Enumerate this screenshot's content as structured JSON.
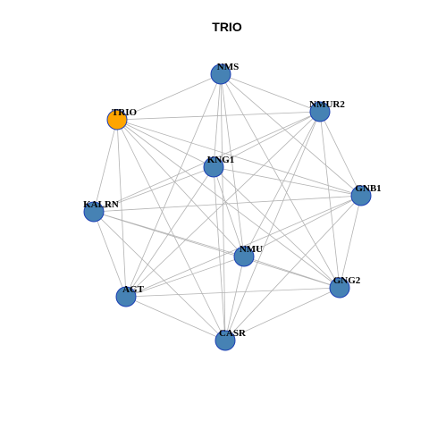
{
  "title": "TRIO",
  "nodes": [
    {
      "label": "NMS",
      "color": "#4682b4"
    },
    {
      "label": "NMUR2",
      "color": "#4682b4"
    },
    {
      "label": "TRIO",
      "color": "#ffa500"
    },
    {
      "label": "KNG1",
      "color": "#4682b4"
    },
    {
      "label": "GNB1",
      "color": "#4682b4"
    },
    {
      "label": "KALRN",
      "color": "#4682b4"
    },
    {
      "label": "NMU",
      "color": "#4682b4"
    },
    {
      "label": "GNG2",
      "color": "#4682b4"
    },
    {
      "label": "AGT",
      "color": "#4682b4"
    },
    {
      "label": "CASR",
      "color": "#4682b4"
    }
  ],
  "edges": [
    [
      2,
      0
    ],
    [
      2,
      1
    ],
    [
      2,
      3
    ],
    [
      2,
      4
    ],
    [
      2,
      5
    ],
    [
      2,
      6
    ],
    [
      2,
      7
    ],
    [
      2,
      8
    ],
    [
      2,
      9
    ],
    [
      0,
      1
    ],
    [
      0,
      3
    ],
    [
      0,
      6
    ],
    [
      0,
      7
    ],
    [
      0,
      8
    ],
    [
      0,
      9
    ],
    [
      0,
      4
    ],
    [
      1,
      3
    ],
    [
      1,
      5
    ],
    [
      1,
      6
    ],
    [
      1,
      8
    ],
    [
      1,
      9
    ],
    [
      1,
      4
    ],
    [
      1,
      7
    ],
    [
      3,
      5
    ],
    [
      3,
      4
    ],
    [
      3,
      6
    ],
    [
      3,
      7
    ],
    [
      3,
      8
    ],
    [
      3,
      9
    ],
    [
      4,
      5
    ],
    [
      4,
      6
    ],
    [
      4,
      8
    ],
    [
      4,
      9
    ],
    [
      4,
      7
    ],
    [
      5,
      6
    ],
    [
      5,
      7
    ],
    [
      5,
      8
    ],
    [
      5,
      9
    ],
    [
      6,
      7
    ],
    [
      6,
      8
    ],
    [
      6,
      9
    ],
    [
      7,
      8
    ],
    [
      7,
      9
    ],
    [
      8,
      9
    ]
  ]
}
